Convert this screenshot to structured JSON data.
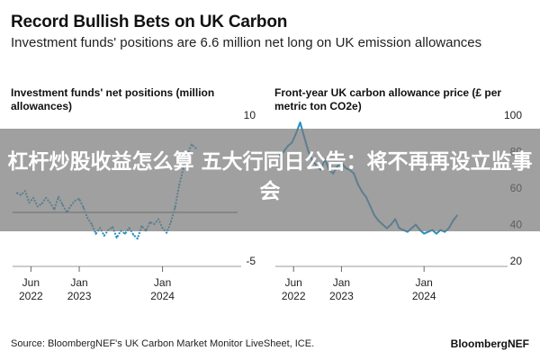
{
  "title": "Record Bullish Bets on UK Carbon",
  "subtitle": "Investment funds' positions are 6.6 million net long on UK emission allowances",
  "overlay_text": "杠杆炒股收益怎么算 五大行同日公告：将不再再设立监事会",
  "source": "Source: BloombergNEF's UK Carbon Market Monitor LiveSheet, ICE.",
  "brand": "BloombergNEF",
  "chart_data": [
    {
      "type": "line",
      "title": "Investment funds' net positions (million allowances)",
      "color": "#1f8fc4",
      "ylim": [
        -5,
        10
      ],
      "yticks": [
        10,
        -5
      ],
      "xticks": [
        {
          "t": 2022.42,
          "label": "Jun",
          "sub": "2022"
        },
        {
          "t": 2023.0,
          "label": "Jan",
          "sub": "2023"
        },
        {
          "t": 2024.0,
          "label": "Jan",
          "sub": "2024"
        }
      ],
      "xlim": [
        2022.2,
        2024.75
      ],
      "x": [
        2022.25,
        2022.3,
        2022.35,
        2022.4,
        2022.45,
        2022.5,
        2022.55,
        2022.6,
        2022.65,
        2022.7,
        2022.75,
        2022.8,
        2022.85,
        2022.9,
        2022.95,
        2023.0,
        2023.05,
        2023.1,
        2023.15,
        2023.2,
        2023.25,
        2023.3,
        2023.35,
        2023.4,
        2023.45,
        2023.5,
        2023.55,
        2023.6,
        2023.65,
        2023.7,
        2023.75,
        2023.8,
        2023.85,
        2023.9,
        2023.95,
        2024.0,
        2024.05,
        2024.1,
        2024.15,
        2024.2,
        2024.25,
        2024.3,
        2024.35,
        2024.4
      ],
      "values": [
        2.0,
        1.8,
        2.2,
        1.0,
        1.5,
        0.6,
        0.9,
        1.5,
        1.0,
        0.3,
        1.6,
        0.8,
        0.0,
        0.7,
        1.2,
        1.4,
        0.5,
        -0.6,
        -1.2,
        -2.2,
        -1.6,
        -2.4,
        -1.8,
        -1.5,
        -2.6,
        -1.9,
        -2.2,
        -1.6,
        -2.3,
        -2.7,
        -1.4,
        -1.9,
        -1.0,
        -1.2,
        -0.7,
        -1.6,
        -2.1,
        -1.0,
        0.5,
        2.8,
        4.5,
        6.0,
        7.0,
        6.6
      ]
    },
    {
      "type": "line",
      "title": "Front-year UK carbon allowance price (£ per metric ton CO2e)",
      "color": "#1f8fc4",
      "ylim": [
        20,
        100
      ],
      "yticks": [
        100,
        80,
        60,
        40,
        20
      ],
      "xticks": [
        {
          "t": 2022.42,
          "label": "Jun",
          "sub": "2022"
        },
        {
          "t": 2023.0,
          "label": "Jan",
          "sub": "2023"
        },
        {
          "t": 2024.0,
          "label": "Jan",
          "sub": "2024"
        }
      ],
      "xlim": [
        2022.2,
        2024.75
      ],
      "x": [
        2022.25,
        2022.3,
        2022.35,
        2022.4,
        2022.45,
        2022.5,
        2022.55,
        2022.6,
        2022.65,
        2022.7,
        2022.75,
        2022.8,
        2022.85,
        2022.9,
        2022.95,
        2023.0,
        2023.05,
        2023.1,
        2023.15,
        2023.2,
        2023.25,
        2023.3,
        2023.35,
        2023.4,
        2023.45,
        2023.5,
        2023.55,
        2023.6,
        2023.65,
        2023.7,
        2023.75,
        2023.8,
        2023.85,
        2023.9,
        2023.95,
        2024.0,
        2024.05,
        2024.1,
        2024.15,
        2024.2,
        2024.25,
        2024.3,
        2024.35,
        2024.4
      ],
      "values": [
        78,
        80,
        83,
        85,
        90,
        96,
        88,
        80,
        75,
        72,
        70,
        76,
        70,
        68,
        72,
        74,
        71,
        70,
        68,
        62,
        58,
        55,
        50,
        45,
        42,
        40,
        38,
        40,
        43,
        38,
        37,
        36,
        38,
        40,
        37,
        35,
        36,
        37,
        35,
        37,
        36,
        38,
        42,
        45
      ]
    }
  ]
}
